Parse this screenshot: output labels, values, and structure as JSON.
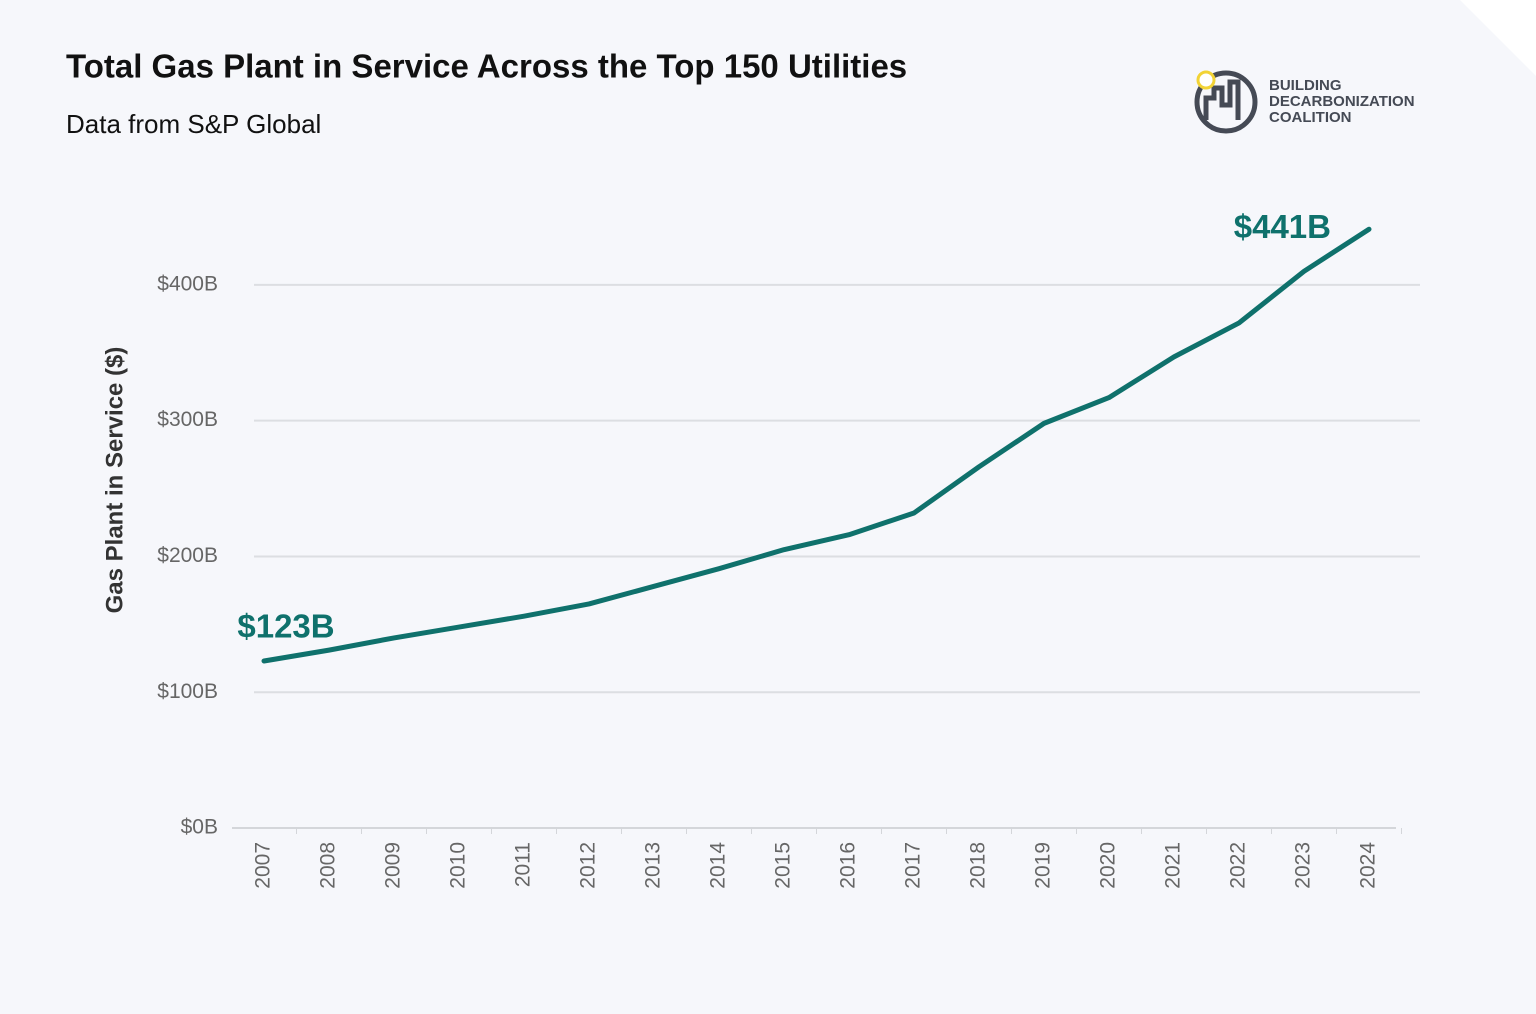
{
  "chart_data": {
    "type": "line",
    "title": "Total Gas Plant in Service Across the Top 150 Utilities",
    "subtitle": "Data from S&P Global",
    "y_label": "Gas Plant in Service ($)",
    "logo": [
      "BUILDING",
      "DECARBONIZATION",
      "COALITION"
    ],
    "categories": [
      "2007",
      "2008",
      "2009",
      "2010",
      "2011",
      "2012",
      "2013",
      "2014",
      "2015",
      "2016",
      "2017",
      "2018",
      "2019",
      "2020",
      "2021",
      "2022",
      "2023",
      "2024"
    ],
    "series": [
      {
        "name": "Gas Plant in Service",
        "color": "#0f716c",
        "values": [
          123,
          131,
          140,
          148,
          156,
          165,
          178,
          191,
          205,
          216,
          232,
          266,
          298,
          317,
          347,
          372,
          410,
          441
        ],
        "value_labels": [
          "$123B",
          null,
          null,
          null,
          null,
          null,
          null,
          null,
          null,
          null,
          null,
          null,
          null,
          null,
          null,
          null,
          null,
          "$441B"
        ]
      }
    ],
    "ylim": [
      0,
      450
    ],
    "yticks": [
      {
        "value": 0,
        "label": "$0B"
      },
      {
        "value": 100,
        "label": "$100B"
      },
      {
        "value": 200,
        "label": "$200B"
      },
      {
        "value": 300,
        "label": "$300B"
      },
      {
        "value": 400,
        "label": "$400B"
      }
    ],
    "grid": true
  }
}
